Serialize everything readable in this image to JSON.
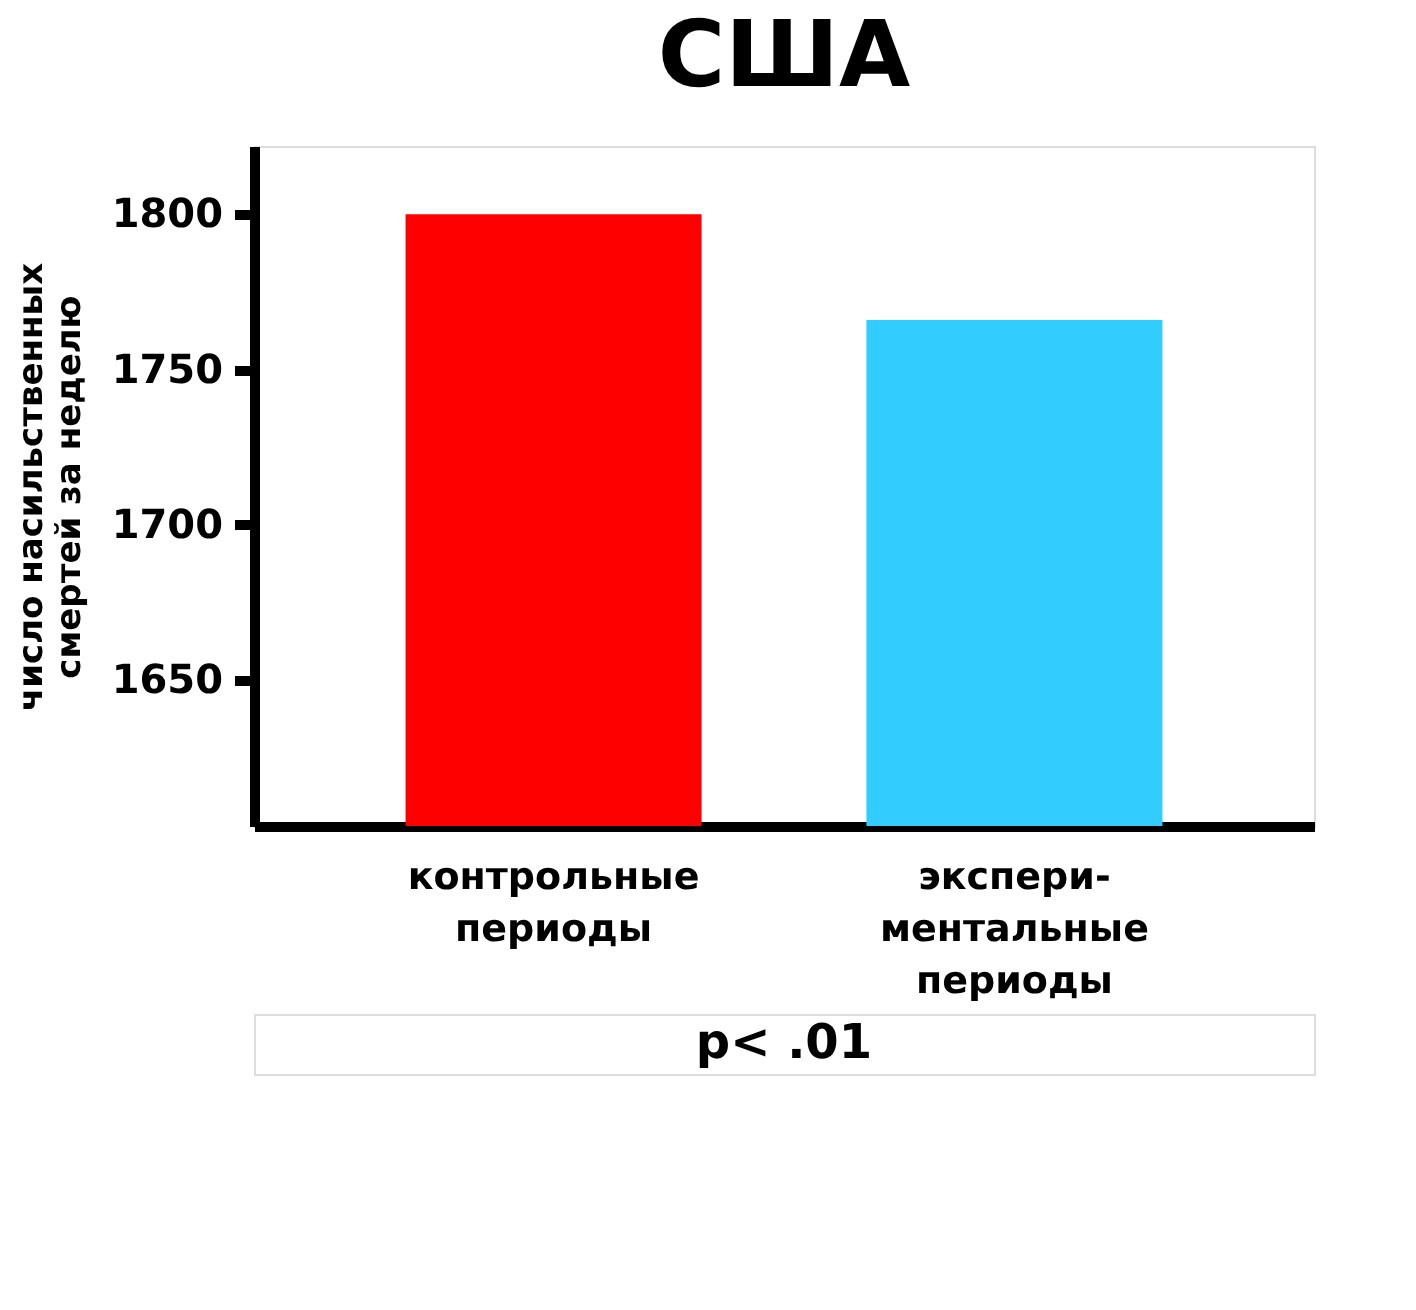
{
  "chart_data": {
    "type": "bar",
    "title": "США",
    "ylabel": "число насильственных\nсмертей за неделю",
    "categories": [
      "контрольные\nпериоды",
      "экспери-\nментальные\nпериоды"
    ],
    "values": [
      1800,
      1766
    ],
    "colors": [
      "#ff0000",
      "#33ccff"
    ],
    "ylim": [
      1603,
      1822
    ],
    "yticks": [
      1650,
      1700,
      1750,
      1800
    ],
    "grid": false,
    "annotations": [
      "p< .01"
    ]
  }
}
